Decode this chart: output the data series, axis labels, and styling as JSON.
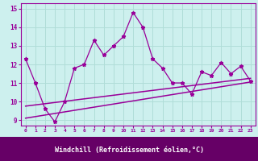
{
  "xlabel": "Windchill (Refroidissement éolien,°C)",
  "bg_color": "#cdf0ee",
  "grid_color": "#b0ddd8",
  "line_color": "#990099",
  "label_bar_color": "#660066",
  "label_text_color": "#ffffff",
  "x_data": [
    0,
    1,
    2,
    3,
    4,
    5,
    6,
    7,
    8,
    9,
    10,
    11,
    12,
    13,
    14,
    15,
    16,
    17,
    18,
    19,
    20,
    21,
    22,
    23
  ],
  "y_main": [
    12.3,
    11.0,
    9.6,
    8.9,
    10.0,
    11.8,
    12.0,
    13.3,
    12.5,
    13.0,
    13.5,
    14.8,
    14.0,
    12.3,
    11.8,
    11.0,
    11.0,
    10.4,
    11.6,
    11.4,
    12.1,
    11.5,
    11.9,
    11.1
  ],
  "trend1_x": [
    0,
    23
  ],
  "trend1_y": [
    9.1,
    11.05
  ],
  "trend2_x": [
    0,
    23
  ],
  "trend2_y": [
    9.75,
    11.25
  ],
  "ylim": [
    8.7,
    15.3
  ],
  "xlim": [
    -0.5,
    23.5
  ],
  "yticks": [
    9,
    10,
    11,
    12,
    13,
    14,
    15
  ],
  "xtick_labels": [
    "0",
    "1",
    "2",
    "3",
    "4",
    "5",
    "6",
    "7",
    "8",
    "9",
    "10",
    "11",
    "12",
    "13",
    "14",
    "15",
    "16",
    "17",
    "18",
    "19",
    "20",
    "21",
    "22",
    "23"
  ]
}
